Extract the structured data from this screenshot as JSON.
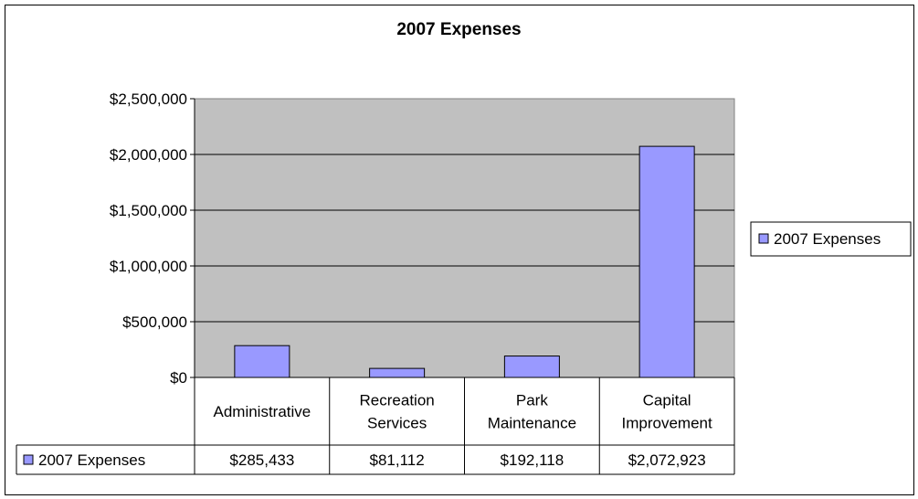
{
  "chart_data": {
    "type": "bar",
    "title": "2007 Expenses",
    "categories": [
      [
        "Administrative"
      ],
      [
        "Recreation",
        "Services"
      ],
      [
        "Park",
        "Maintenance"
      ],
      [
        "Capital",
        "Improvement"
      ]
    ],
    "series": [
      {
        "name": "2007 Expenses",
        "values": [
          285433,
          81112,
          192118,
          2072923
        ],
        "data_labels": [
          "$285,433",
          "$81,112",
          "$192,118",
          "$2,072,923"
        ],
        "color": "#9999ff"
      }
    ],
    "ylim": [
      0,
      2500000
    ],
    "yticks": [
      0,
      500000,
      1000000,
      1500000,
      2000000,
      2500000
    ],
    "ytick_labels": [
      "$0",
      "$500,000",
      "$1,000,000",
      "$1,500,000",
      "$2,000,000",
      "$2,500,000"
    ],
    "plot_background": "#c0c0c0",
    "grid": true,
    "legend_position": "right",
    "data_table": true
  }
}
